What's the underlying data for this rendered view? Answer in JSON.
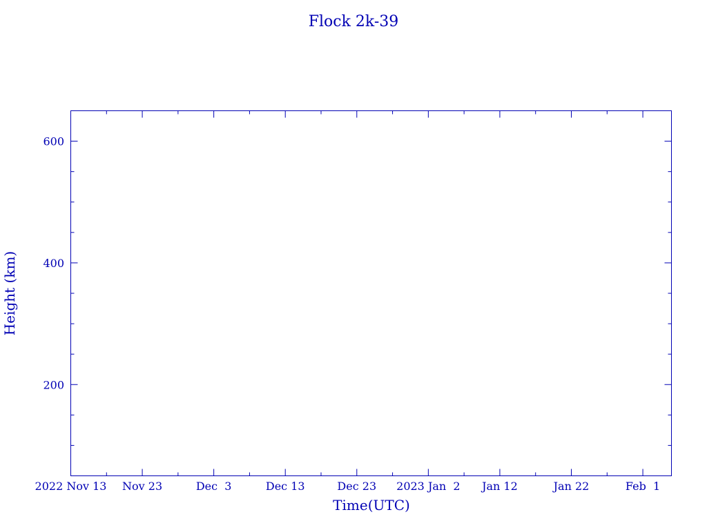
{
  "chart_data": {
    "type": "line",
    "title": "Flock 2k-39",
    "xlabel": "Time(UTC)",
    "ylabel": "Height (km)",
    "xlim": [
      "2022-11-13",
      "2023-02-05"
    ],
    "ylim": [
      50,
      650
    ],
    "x_ticks": [
      {
        "date": "2022-11-13",
        "label": "2022 Nov 13"
      },
      {
        "date": "2022-11-23",
        "label": "Nov 23"
      },
      {
        "date": "2022-12-03",
        "label": "Dec  3"
      },
      {
        "date": "2022-12-13",
        "label": "Dec 13"
      },
      {
        "date": "2022-12-23",
        "label": "Dec 23"
      },
      {
        "date": "2023-01-02",
        "label": "2023 Jan  2"
      },
      {
        "date": "2023-01-12",
        "label": "Jan 12"
      },
      {
        "date": "2023-01-22",
        "label": "Jan 22"
      },
      {
        "date": "2023-02-01",
        "label": "Feb  1"
      }
    ],
    "y_ticks": [
      200,
      400,
      600
    ],
    "y_tick_labels": [
      "200",
      "400",
      "600"
    ],
    "series": [],
    "grid": false,
    "colors": {
      "axis": "#0000b4"
    }
  }
}
